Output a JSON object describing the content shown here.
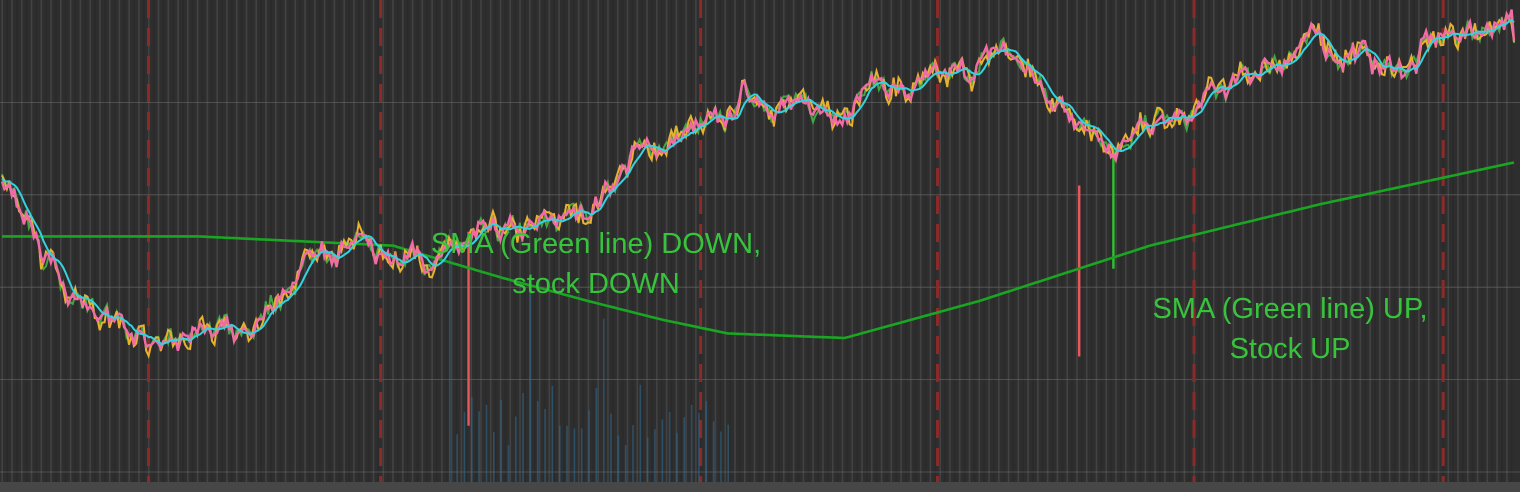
{
  "annotations": {
    "sma_down_line1": "SMA (Green line) DOWN,",
    "sma_down_line2": "stock DOWN",
    "sma_up_line1": "SMA (Green line) UP,",
    "sma_up_line2": "Stock UP"
  },
  "chart_data": {
    "type": "line",
    "title": "",
    "xlabel": "",
    "ylabel": "",
    "grid": true,
    "x_count": 620,
    "y_range": [
      0,
      100
    ],
    "colors": {
      "background": "#2e2e2e",
      "stripe_light": "#4a4a4a",
      "stripe_dark": "#2a2a2a",
      "gridline": "#6e6e6e",
      "session_divider": "#8c2a2a",
      "sma": "#1aa622",
      "fast_ma": "#33d3e0",
      "price_bull": "#f26ba6",
      "price_bear": "#e8b22f",
      "price_green": "#44b544",
      "volume_spike_red": "#e8585a",
      "volume_spike_green": "#2ec42e",
      "volume_bar_blue": "#2f6d98",
      "annotation_text": "#37c43c"
    },
    "session_dividers_x": [
      60,
      155,
      286,
      383,
      488,
      590
    ],
    "price_anchors_x": [
      0,
      6,
      14,
      17,
      30,
      40,
      60,
      70,
      82,
      100,
      110,
      128,
      145,
      157,
      170,
      178,
      184,
      196,
      215,
      240,
      260,
      285,
      298,
      303,
      330,
      346,
      354,
      362,
      370,
      386,
      398,
      410,
      430,
      445,
      453,
      456,
      462,
      467,
      475,
      486,
      492,
      505,
      517,
      530,
      540,
      546,
      557,
      565,
      579,
      583,
      596,
      607,
      614,
      618,
      619
    ],
    "price_values": [
      64,
      59,
      52,
      45,
      39,
      34,
      29,
      26,
      31,
      29,
      36,
      46,
      52,
      46,
      48,
      46,
      47,
      51,
      52,
      57,
      69,
      74,
      76,
      82,
      78,
      79,
      84,
      84,
      82,
      85,
      87,
      92,
      81,
      76,
      72,
      68,
      71,
      74,
      76,
      76,
      81,
      84,
      88,
      91,
      94,
      90,
      91,
      87,
      88,
      93,
      95,
      96,
      99,
      97,
      92
    ],
    "sma_anchors_x": [
      0,
      40,
      80,
      160,
      205,
      240,
      270,
      297,
      345,
      400,
      470,
      540,
      619
    ],
    "sma_values": [
      51,
      51,
      51,
      49,
      42,
      37,
      33,
      30,
      29,
      37,
      49,
      58,
      67
    ],
    "volume_spikes": [
      {
        "x": 191,
        "from": 10,
        "to": 52,
        "color": "red"
      },
      {
        "x": 441,
        "from": 25,
        "to": 62,
        "color": "red"
      },
      {
        "x": 455,
        "from": 44,
        "to": 70,
        "color": "green"
      }
    ]
  }
}
